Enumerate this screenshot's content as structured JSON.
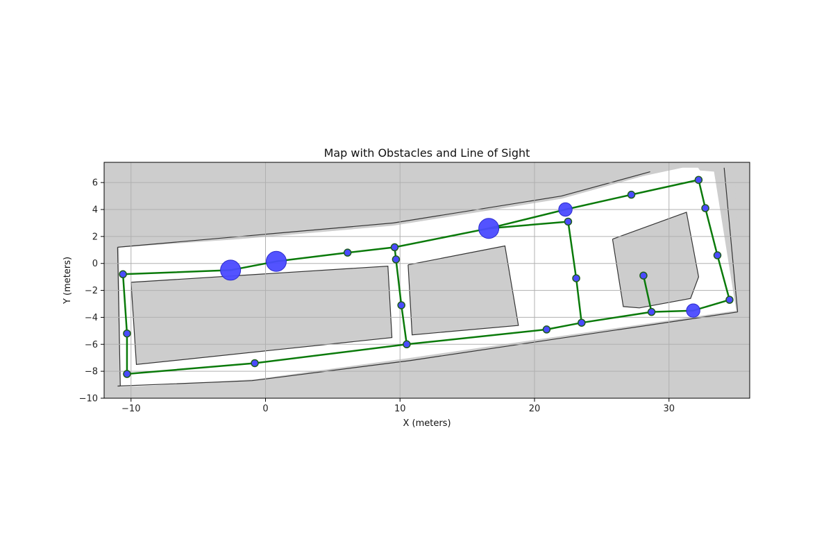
{
  "chart_data": {
    "type": "scatter",
    "title": "Map with Obstacles and Line of Sight",
    "xlabel": "X (meters)",
    "ylabel": "Y (meters)",
    "xlim": [
      -12,
      36
    ],
    "ylim": [
      -10,
      7.5
    ],
    "xticks": [
      -10,
      0,
      10,
      20,
      30
    ],
    "yticks": [
      -10,
      -8,
      -6,
      -4,
      -2,
      0,
      2,
      4,
      6
    ],
    "grid": true,
    "colors": {
      "background_map": "#cdcdcd",
      "free_space": "#ffffff",
      "obstacle": "#4a4aff",
      "waypoint": "#4a4aff",
      "path": "#0a7a0a",
      "wall": "#333333",
      "grid": "#b0b0b0"
    },
    "waypoints": [
      {
        "x": -10.6,
        "y": -0.8
      },
      {
        "x": -10.3,
        "y": -5.2
      },
      {
        "x": -10.3,
        "y": -8.2
      },
      {
        "x": -0.8,
        "y": -7.4
      },
      {
        "x": 10.5,
        "y": -6.0
      },
      {
        "x": 10.1,
        "y": -3.1
      },
      {
        "x": 9.7,
        "y": 0.3
      },
      {
        "x": 9.6,
        "y": 1.2
      },
      {
        "x": 6.1,
        "y": 0.8
      },
      {
        "x": 22.5,
        "y": 3.1
      },
      {
        "x": 23.1,
        "y": -1.1
      },
      {
        "x": 23.5,
        "y": -4.4
      },
      {
        "x": 20.9,
        "y": -4.9
      },
      {
        "x": 27.2,
        "y": 5.1
      },
      {
        "x": 32.2,
        "y": 6.2
      },
      {
        "x": 32.7,
        "y": 4.1
      },
      {
        "x": 33.6,
        "y": 0.6
      },
      {
        "x": 34.5,
        "y": -2.7
      },
      {
        "x": 28.7,
        "y": -3.6
      },
      {
        "x": 28.1,
        "y": -0.9
      }
    ],
    "obstacles": [
      {
        "x": -2.6,
        "y": -0.5,
        "r": 0.75
      },
      {
        "x": 0.8,
        "y": 0.15,
        "r": 0.75
      },
      {
        "x": 16.6,
        "y": 2.6,
        "r": 0.75
      },
      {
        "x": 22.3,
        "y": 4.0,
        "r": 0.5
      },
      {
        "x": 31.8,
        "y": -3.5,
        "r": 0.5
      }
    ],
    "path_segments": [
      [
        [
          -10.6,
          -0.8
        ],
        [
          -2.6,
          -0.5
        ]
      ],
      [
        [
          -2.6,
          -0.5
        ],
        [
          0.8,
          0.15
        ]
      ],
      [
        [
          0.8,
          0.15
        ],
        [
          6.1,
          0.8
        ]
      ],
      [
        [
          6.1,
          0.8
        ],
        [
          9.6,
          1.2
        ]
      ],
      [
        [
          9.6,
          1.2
        ],
        [
          16.6,
          2.6
        ]
      ],
      [
        [
          16.6,
          2.6
        ],
        [
          22.3,
          4.0
        ]
      ],
      [
        [
          22.3,
          4.0
        ],
        [
          27.2,
          5.1
        ]
      ],
      [
        [
          27.2,
          5.1
        ],
        [
          32.2,
          6.2
        ]
      ],
      [
        [
          32.2,
          6.2
        ],
        [
          32.7,
          4.1
        ]
      ],
      [
        [
          32.7,
          4.1
        ],
        [
          33.6,
          0.6
        ]
      ],
      [
        [
          33.6,
          0.6
        ],
        [
          34.5,
          -2.7
        ]
      ],
      [
        [
          34.5,
          -2.7
        ],
        [
          31.8,
          -3.5
        ]
      ],
      [
        [
          31.8,
          -3.5
        ],
        [
          28.7,
          -3.6
        ]
      ],
      [
        [
          28.7,
          -3.6
        ],
        [
          28.1,
          -0.9
        ]
      ],
      [
        [
          28.7,
          -3.6
        ],
        [
          23.5,
          -4.4
        ]
      ],
      [
        [
          23.5,
          -4.4
        ],
        [
          20.9,
          -4.9
        ]
      ],
      [
        [
          20.9,
          -4.9
        ],
        [
          10.5,
          -6.0
        ]
      ],
      [
        [
          10.5,
          -6.0
        ],
        [
          -0.8,
          -7.4
        ]
      ],
      [
        [
          -0.8,
          -7.4
        ],
        [
          -10.3,
          -8.2
        ]
      ],
      [
        [
          -10.3,
          -8.2
        ],
        [
          -10.3,
          -5.2
        ]
      ],
      [
        [
          -10.3,
          -5.2
        ],
        [
          -10.6,
          -0.8
        ]
      ],
      [
        [
          10.5,
          -6.0
        ],
        [
          10.1,
          -3.1
        ]
      ],
      [
        [
          10.1,
          -3.1
        ],
        [
          9.7,
          0.3
        ]
      ],
      [
        [
          9.7,
          0.3
        ],
        [
          9.6,
          1.2
        ]
      ],
      [
        [
          16.6,
          2.6
        ],
        [
          22.5,
          3.1
        ]
      ],
      [
        [
          22.5,
          3.1
        ],
        [
          23.1,
          -1.1
        ]
      ],
      [
        [
          23.1,
          -1.1
        ],
        [
          23.5,
          -4.4
        ]
      ]
    ]
  }
}
